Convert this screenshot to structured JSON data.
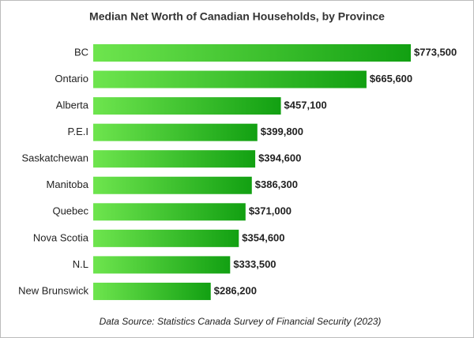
{
  "chart_data": {
    "type": "bar",
    "orientation": "horizontal",
    "title": "Median Net Worth of Canadian Households, by Province",
    "categories": [
      "BC",
      "Ontario",
      "Alberta",
      "P.E.I",
      "Saskatchewan",
      "Manitoba",
      "Quebec",
      "Nova Scotia",
      "N.L",
      "New Brunswick"
    ],
    "values": [
      773500,
      665600,
      457100,
      399800,
      394600,
      386300,
      371000,
      354600,
      333500,
      286200
    ],
    "value_labels": [
      "$773,500",
      "$665,600",
      "$457,100",
      "$399,800",
      "$394,600",
      "$386,300",
      "$371,000",
      "$354,600",
      "$333,500",
      "$286,200"
    ],
    "color": "#12a012",
    "source": "Data Source: Statistics Canada Survey of Financial Security (2023)"
  }
}
